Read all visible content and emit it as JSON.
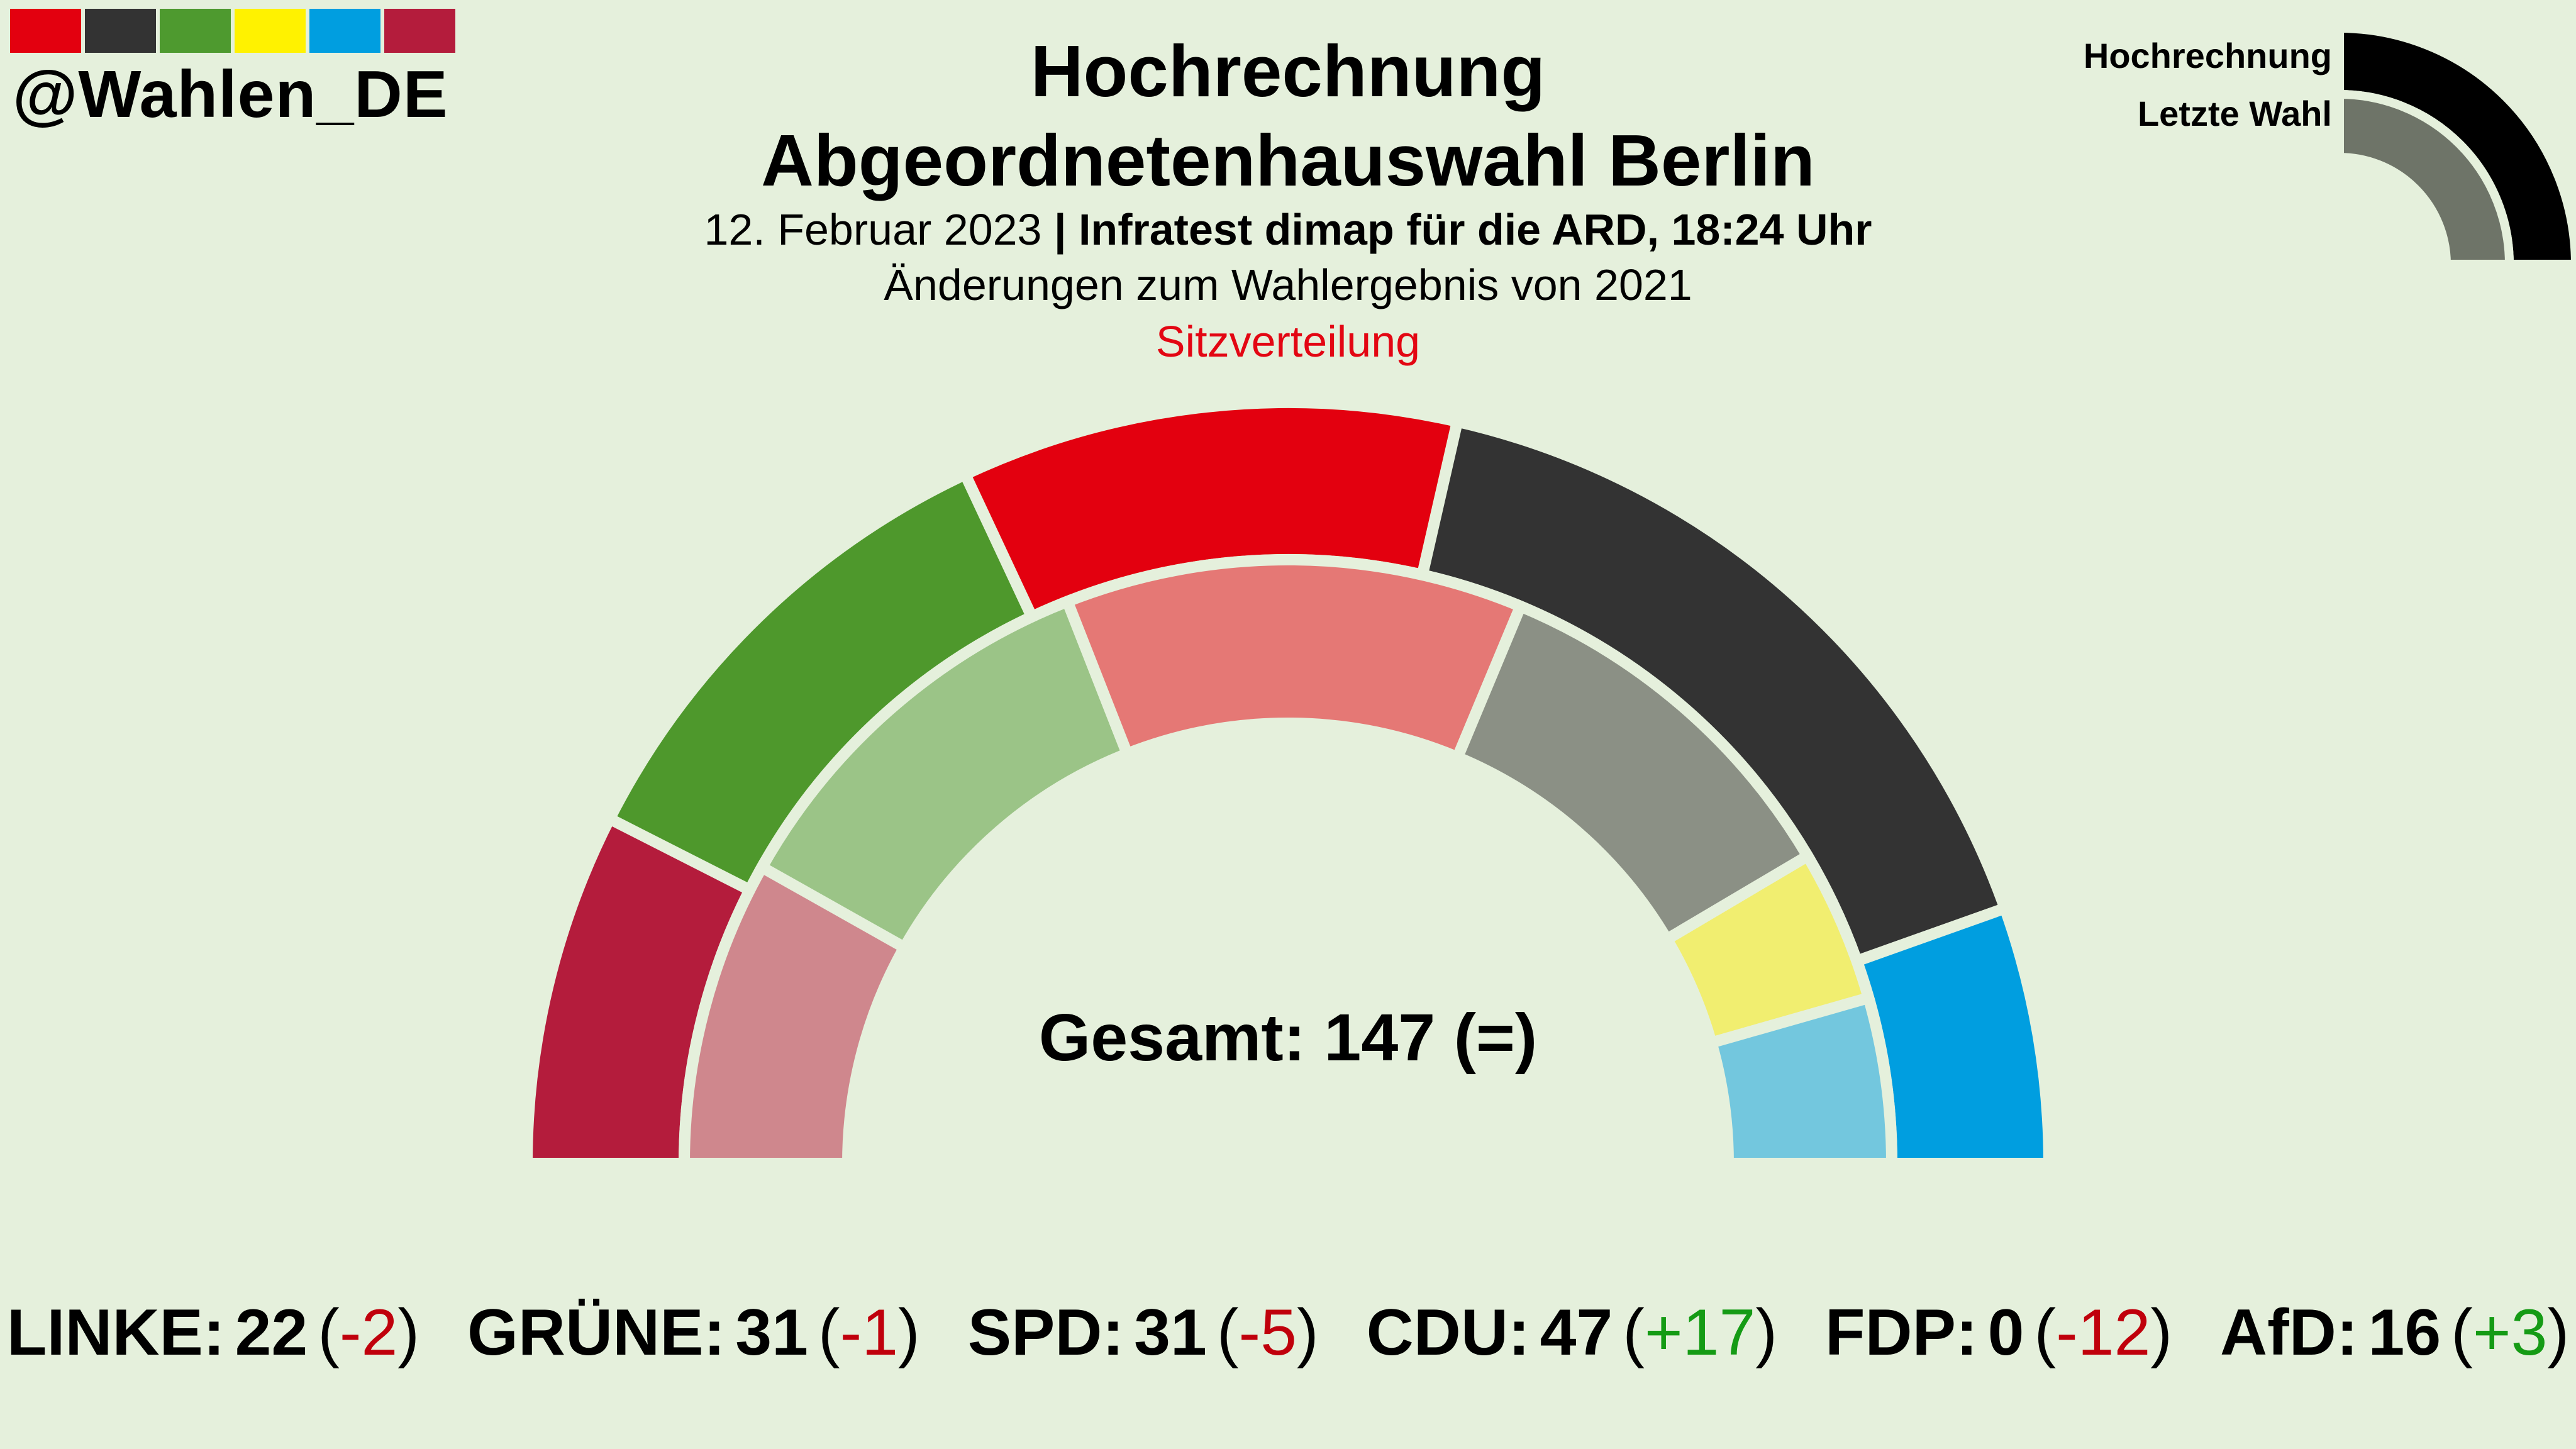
{
  "brand": {
    "handle": "@Wahlen_DE",
    "strip_colors": [
      "#e3000f",
      "#333333",
      "#4e9a2f",
      "#fff200",
      "#009ee0",
      "#b41c3c"
    ]
  },
  "header": {
    "title_line1": "Hochrechnung",
    "title_line2": "Abgeordnetenhauswahl Berlin",
    "date": "12. Februar 2023",
    "separator": "|",
    "source": "Infratest dimap für die ARD, 18:24 Uhr",
    "subtitle": "Änderungen zum Wahlergebnis von 2021",
    "section_label": "Sitzverteilung"
  },
  "legend": {
    "outer_label": "Hochrechnung",
    "inner_label": "Letzte Wahl",
    "outer_color": "#000000",
    "inner_color": "#6e7468"
  },
  "total": {
    "text": "Gesamt: 147 (=)"
  },
  "chart_data": {
    "type": "semicircle",
    "total_seats": 147,
    "order": [
      "LINKE",
      "GRÜNE",
      "SPD",
      "CDU",
      "FDP",
      "AfD"
    ],
    "series": [
      {
        "name": "Hochrechnung",
        "values": [
          {
            "party": "LINKE",
            "seats": 22
          },
          {
            "party": "GRÜNE",
            "seats": 31
          },
          {
            "party": "SPD",
            "seats": 31
          },
          {
            "party": "CDU",
            "seats": 47
          },
          {
            "party": "FDP",
            "seats": 0
          },
          {
            "party": "AfD",
            "seats": 16
          }
        ]
      },
      {
        "name": "Letzte Wahl",
        "values": [
          {
            "party": "LINKE",
            "seats": 24
          },
          {
            "party": "GRÜNE",
            "seats": 32
          },
          {
            "party": "SPD",
            "seats": 36
          },
          {
            "party": "CDU",
            "seats": 30
          },
          {
            "party": "FDP",
            "seats": 12
          },
          {
            "party": "AfD",
            "seats": 13
          }
        ]
      }
    ],
    "colors": {
      "LINKE": {
        "current": "#b41c3c",
        "previous": "#cf878d"
      },
      "GRÜNE": {
        "current": "#4e982c",
        "previous": "#9bc487"
      },
      "SPD": {
        "current": "#e3000f",
        "previous": "#e57875"
      },
      "CDU": {
        "current": "#333333",
        "previous": "#8b9085"
      },
      "FDP": {
        "current": "#fff200",
        "previous": "#f1ee70"
      },
      "AfD": {
        "current": "#009ee0",
        "previous": "#73c7de"
      }
    }
  },
  "results": [
    {
      "party": "LINKE:",
      "seats": "22",
      "delta": "-2",
      "sign": "neg"
    },
    {
      "party": "GRÜNE:",
      "seats": "31",
      "delta": "-1",
      "sign": "neg"
    },
    {
      "party": "SPD:",
      "seats": "31",
      "delta": "-5",
      "sign": "neg"
    },
    {
      "party": "CDU:",
      "seats": "47",
      "delta": "+17",
      "sign": "pos"
    },
    {
      "party": "FDP:",
      "seats": "0",
      "delta": "-12",
      "sign": "neg"
    },
    {
      "party": "AfD:",
      "seats": "16",
      "delta": "+3",
      "sign": "pos"
    }
  ]
}
